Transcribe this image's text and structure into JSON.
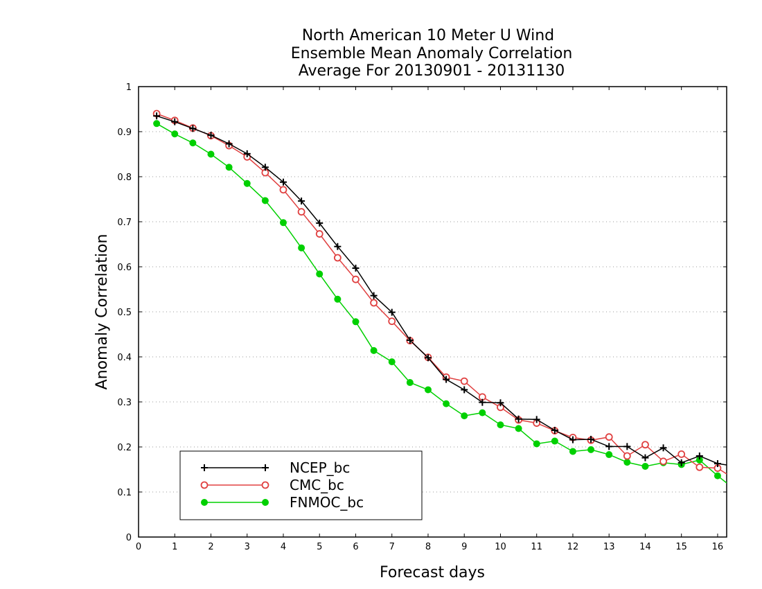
{
  "chart_data": {
    "type": "line",
    "title": [
      "North American 10 Meter U Wind",
      "Ensemble Mean Anomaly Correlation",
      "Average For 20130901 - 20131130"
    ],
    "xlabel": "Forecast days",
    "ylabel": "Anomaly Correlation",
    "xlim": [
      0,
      16.25
    ],
    "ylim": [
      0,
      1
    ],
    "xticks": [
      0,
      1,
      2,
      3,
      4,
      5,
      6,
      7,
      8,
      9,
      10,
      11,
      12,
      13,
      14,
      15,
      16
    ],
    "xtick_labels": [
      "0",
      "1",
      "2",
      "3",
      "4",
      "5",
      "6",
      "7",
      "8",
      "9",
      "10",
      "11",
      "12",
      "13",
      "14",
      "15",
      "16"
    ],
    "yticks": [
      0,
      0.1,
      0.2,
      0.3,
      0.4,
      0.5,
      0.6,
      0.7,
      0.8,
      0.9,
      1
    ],
    "ytick_labels": [
      "0",
      "0.1",
      "0.2",
      "0.3",
      "0.4",
      "0.5",
      "0.6",
      "0.7",
      "0.8",
      "0.9",
      "1"
    ],
    "grid": "horizontal dotted",
    "legend_position": "bottom-left",
    "x": [
      0.5,
      1,
      1.5,
      2,
      2.5,
      3,
      3.5,
      4,
      4.5,
      5,
      5.5,
      6,
      6.5,
      7,
      7.5,
      8,
      8.5,
      9,
      9.5,
      10,
      10.5,
      11,
      11.5,
      12,
      12.5,
      13,
      13.5,
      14,
      14.5,
      15,
      15.5,
      16,
      16.25
    ],
    "series": [
      {
        "name": "NCEP_bc",
        "color": "#000000",
        "marker": "plus",
        "values": [
          0.935,
          0.922,
          0.907,
          0.892,
          0.873,
          0.851,
          0.821,
          0.788,
          0.746,
          0.697,
          0.645,
          0.597,
          0.536,
          0.499,
          0.437,
          0.398,
          0.35,
          0.327,
          0.299,
          0.298,
          0.262,
          0.261,
          0.237,
          0.216,
          0.217,
          0.201,
          0.201,
          0.176,
          0.198,
          0.165,
          0.18,
          0.163,
          0.16
        ]
      },
      {
        "name": "CMC_bc",
        "color": "#e04040",
        "marker": "open-circle",
        "values": [
          0.94,
          0.925,
          0.908,
          0.891,
          0.869,
          0.844,
          0.809,
          0.771,
          0.722,
          0.673,
          0.62,
          0.572,
          0.52,
          0.479,
          0.436,
          0.399,
          0.355,
          0.346,
          0.311,
          0.288,
          0.26,
          0.253,
          0.236,
          0.221,
          0.215,
          0.222,
          0.18,
          0.205,
          0.168,
          0.184,
          0.155,
          0.153,
          0.14
        ]
      },
      {
        "name": "FNMOC_bc",
        "color": "#00d000",
        "marker": "filled-circle",
        "values": [
          0.918,
          0.895,
          0.875,
          0.85,
          0.821,
          0.785,
          0.747,
          0.698,
          0.642,
          0.584,
          0.528,
          0.478,
          0.414,
          0.389,
          0.343,
          0.327,
          0.296,
          0.269,
          0.276,
          0.249,
          0.241,
          0.207,
          0.213,
          0.19,
          0.194,
          0.183,
          0.166,
          0.157,
          0.165,
          0.161,
          0.171,
          0.136,
          0.12
        ]
      }
    ]
  }
}
